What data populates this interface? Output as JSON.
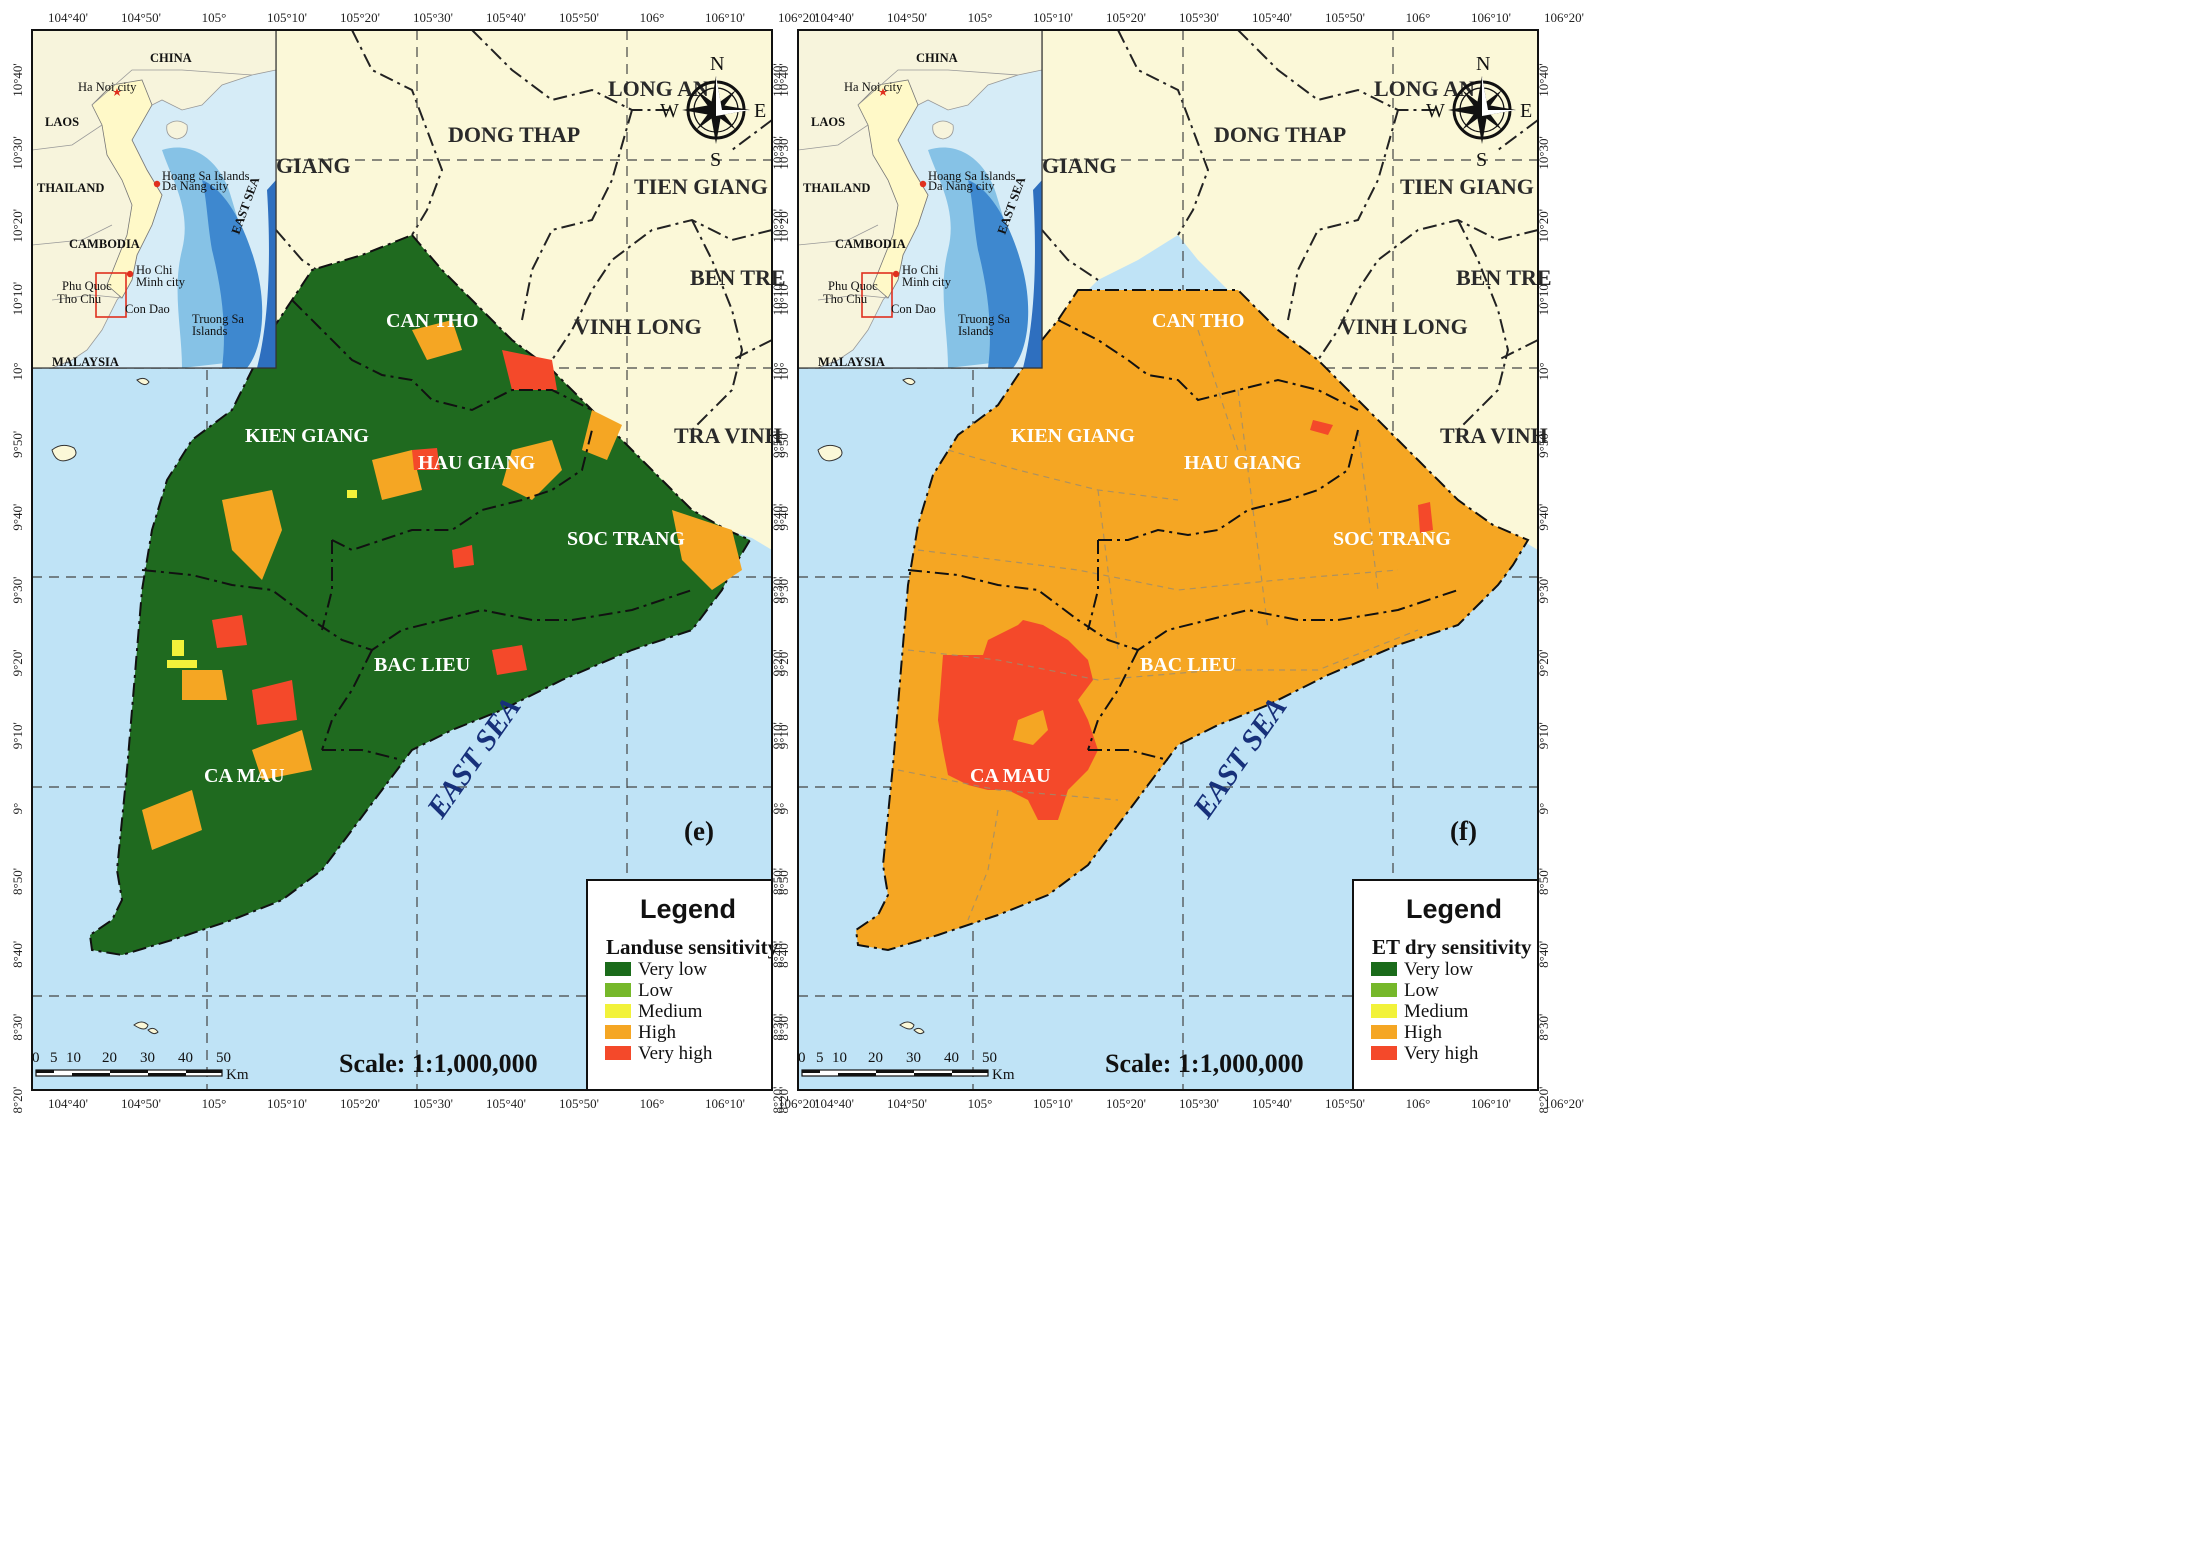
{
  "panels": [
    {
      "id": "e",
      "panel_label": "(e)",
      "legend": {
        "title": "Legend",
        "subtitle": "Landuse sensitivity",
        "items": [
          {
            "label": "Very low",
            "color": "#1a6b1a"
          },
          {
            "label": "Low",
            "color": "#76b82a"
          },
          {
            "label": "Medium",
            "color": "#f2f23a"
          },
          {
            "label": "High",
            "color": "#f5a623"
          },
          {
            "label": "Very high",
            "color": "#f4492a"
          }
        ]
      },
      "scale_text": "Scale: 1:1,000,000",
      "delta_fill": "#1f6a1f"
    },
    {
      "id": "f",
      "panel_label": "(f)",
      "legend": {
        "title": "Legend",
        "subtitle": "ET dry sensitivity",
        "items": [
          {
            "label": "Very low",
            "color": "#1a6b1a"
          },
          {
            "label": "Low",
            "color": "#76b82a"
          },
          {
            "label": "Medium",
            "color": "#f2f23a"
          },
          {
            "label": "High",
            "color": "#f5a623"
          },
          {
            "label": "Very high",
            "color": "#f4492a"
          }
        ]
      },
      "scale_text": "Scale: 1:1,000,000",
      "delta_fill": "#f5a623"
    }
  ],
  "lon_ticks": [
    "104°40'",
    "104°50'",
    "105°",
    "105°10'",
    "105°20'",
    "105°30'",
    "105°40'",
    "105°50'",
    "106°",
    "106°10'",
    "106°20'"
  ],
  "lat_ticks": [
    "10°40'",
    "10°30'",
    "10°20'",
    "10°10'",
    "10°",
    "9°50'",
    "9°40'",
    "9°30'",
    "9°20'",
    "9°10'",
    "9°",
    "8°50'",
    "8°40'",
    "8°30'",
    "8°20'"
  ],
  "scale_bar": {
    "ticks": [
      "0",
      "5",
      "10",
      "20",
      "30",
      "40",
      "50"
    ],
    "unit": "Km"
  },
  "compass": {
    "n": "N",
    "s": "S",
    "e": "E",
    "w": "W"
  },
  "provinces": {
    "long_an": "LONG AN",
    "dong_thap": "DONG THAP",
    "tien_giang": "TIEN GIANG",
    "ben_tre": "BEN TRE",
    "vinh_long": "VINH LONG",
    "tra_vinh": "TRA VINH",
    "giang": "GIANG",
    "can_tho": "CAN THO",
    "kien_giang": "KIEN GIANG",
    "hau_giang": "HAU GIANG",
    "soc_trang": "SOC TRANG",
    "bac_lieu": "BAC LIEU",
    "ca_mau": "CA MAU",
    "east_sea": "EAST SEA"
  },
  "inset": {
    "china": "CHINA",
    "laos": "LAOS",
    "thailand": "THAILAND",
    "cambodia": "CAMBODIA",
    "malaysia": "MALAYSIA",
    "ha_noi": "Ha Noi city",
    "da_nang": "Da Nang city",
    "hcm_1": "Ho Chi",
    "hcm_2": "Minh city",
    "hoang_sa": "Hoang Sa Islands",
    "truong_sa_1": "Truong Sa",
    "truong_sa_2": "Islands",
    "phu_quoc": "Phu Quoc",
    "tho_chu": "Tho Chu",
    "con_dao": "Con Dao",
    "east_sea": "EAST SEA"
  }
}
